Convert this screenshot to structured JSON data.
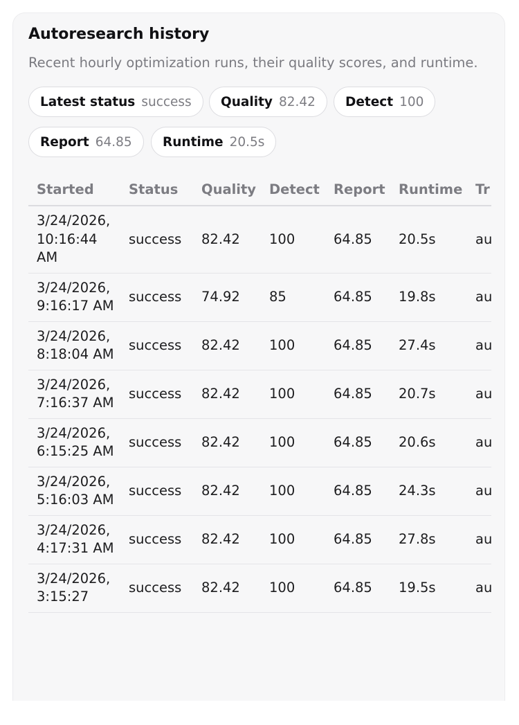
{
  "card": {
    "title": "Autoresearch history",
    "subtitle": "Recent hourly optimization runs, their quality scores, and runtime."
  },
  "summary": [
    {
      "label": "Latest status",
      "value": "success"
    },
    {
      "label": "Quality",
      "value": "82.42"
    },
    {
      "label": "Detect",
      "value": "100"
    },
    {
      "label": "Report",
      "value": "64.85"
    },
    {
      "label": "Runtime",
      "value": "20.5s"
    }
  ],
  "table": {
    "columns": [
      "Started",
      "Status",
      "Quality",
      "Detect",
      "Report",
      "Runtime",
      "Tr"
    ],
    "rows": [
      {
        "started": "3/24/2026, 10:16:44 AM",
        "status": "success",
        "quality": "82.42",
        "detect": "100",
        "report": "64.85",
        "runtime": "20.5s",
        "trigger": "au"
      },
      {
        "started": "3/24/2026, 9:16:17 AM",
        "status": "success",
        "quality": "74.92",
        "detect": "85",
        "report": "64.85",
        "runtime": "19.8s",
        "trigger": "au"
      },
      {
        "started": "3/24/2026, 8:18:04 AM",
        "status": "success",
        "quality": "82.42",
        "detect": "100",
        "report": "64.85",
        "runtime": "27.4s",
        "trigger": "au"
      },
      {
        "started": "3/24/2026, 7:16:37 AM",
        "status": "success",
        "quality": "82.42",
        "detect": "100",
        "report": "64.85",
        "runtime": "20.7s",
        "trigger": "au"
      },
      {
        "started": "3/24/2026, 6:15:25 AM",
        "status": "success",
        "quality": "82.42",
        "detect": "100",
        "report": "64.85",
        "runtime": "20.6s",
        "trigger": "au"
      },
      {
        "started": "3/24/2026, 5:16:03 AM",
        "status": "success",
        "quality": "82.42",
        "detect": "100",
        "report": "64.85",
        "runtime": "24.3s",
        "trigger": "au"
      },
      {
        "started": "3/24/2026, 4:17:31 AM",
        "status": "success",
        "quality": "82.42",
        "detect": "100",
        "report": "64.85",
        "runtime": "27.8s",
        "trigger": "au"
      },
      {
        "started": "3/24/2026, 3:15:27",
        "status": "success",
        "quality": "82.42",
        "detect": "100",
        "report": "64.85",
        "runtime": "19.5s",
        "trigger": "au"
      }
    ]
  }
}
